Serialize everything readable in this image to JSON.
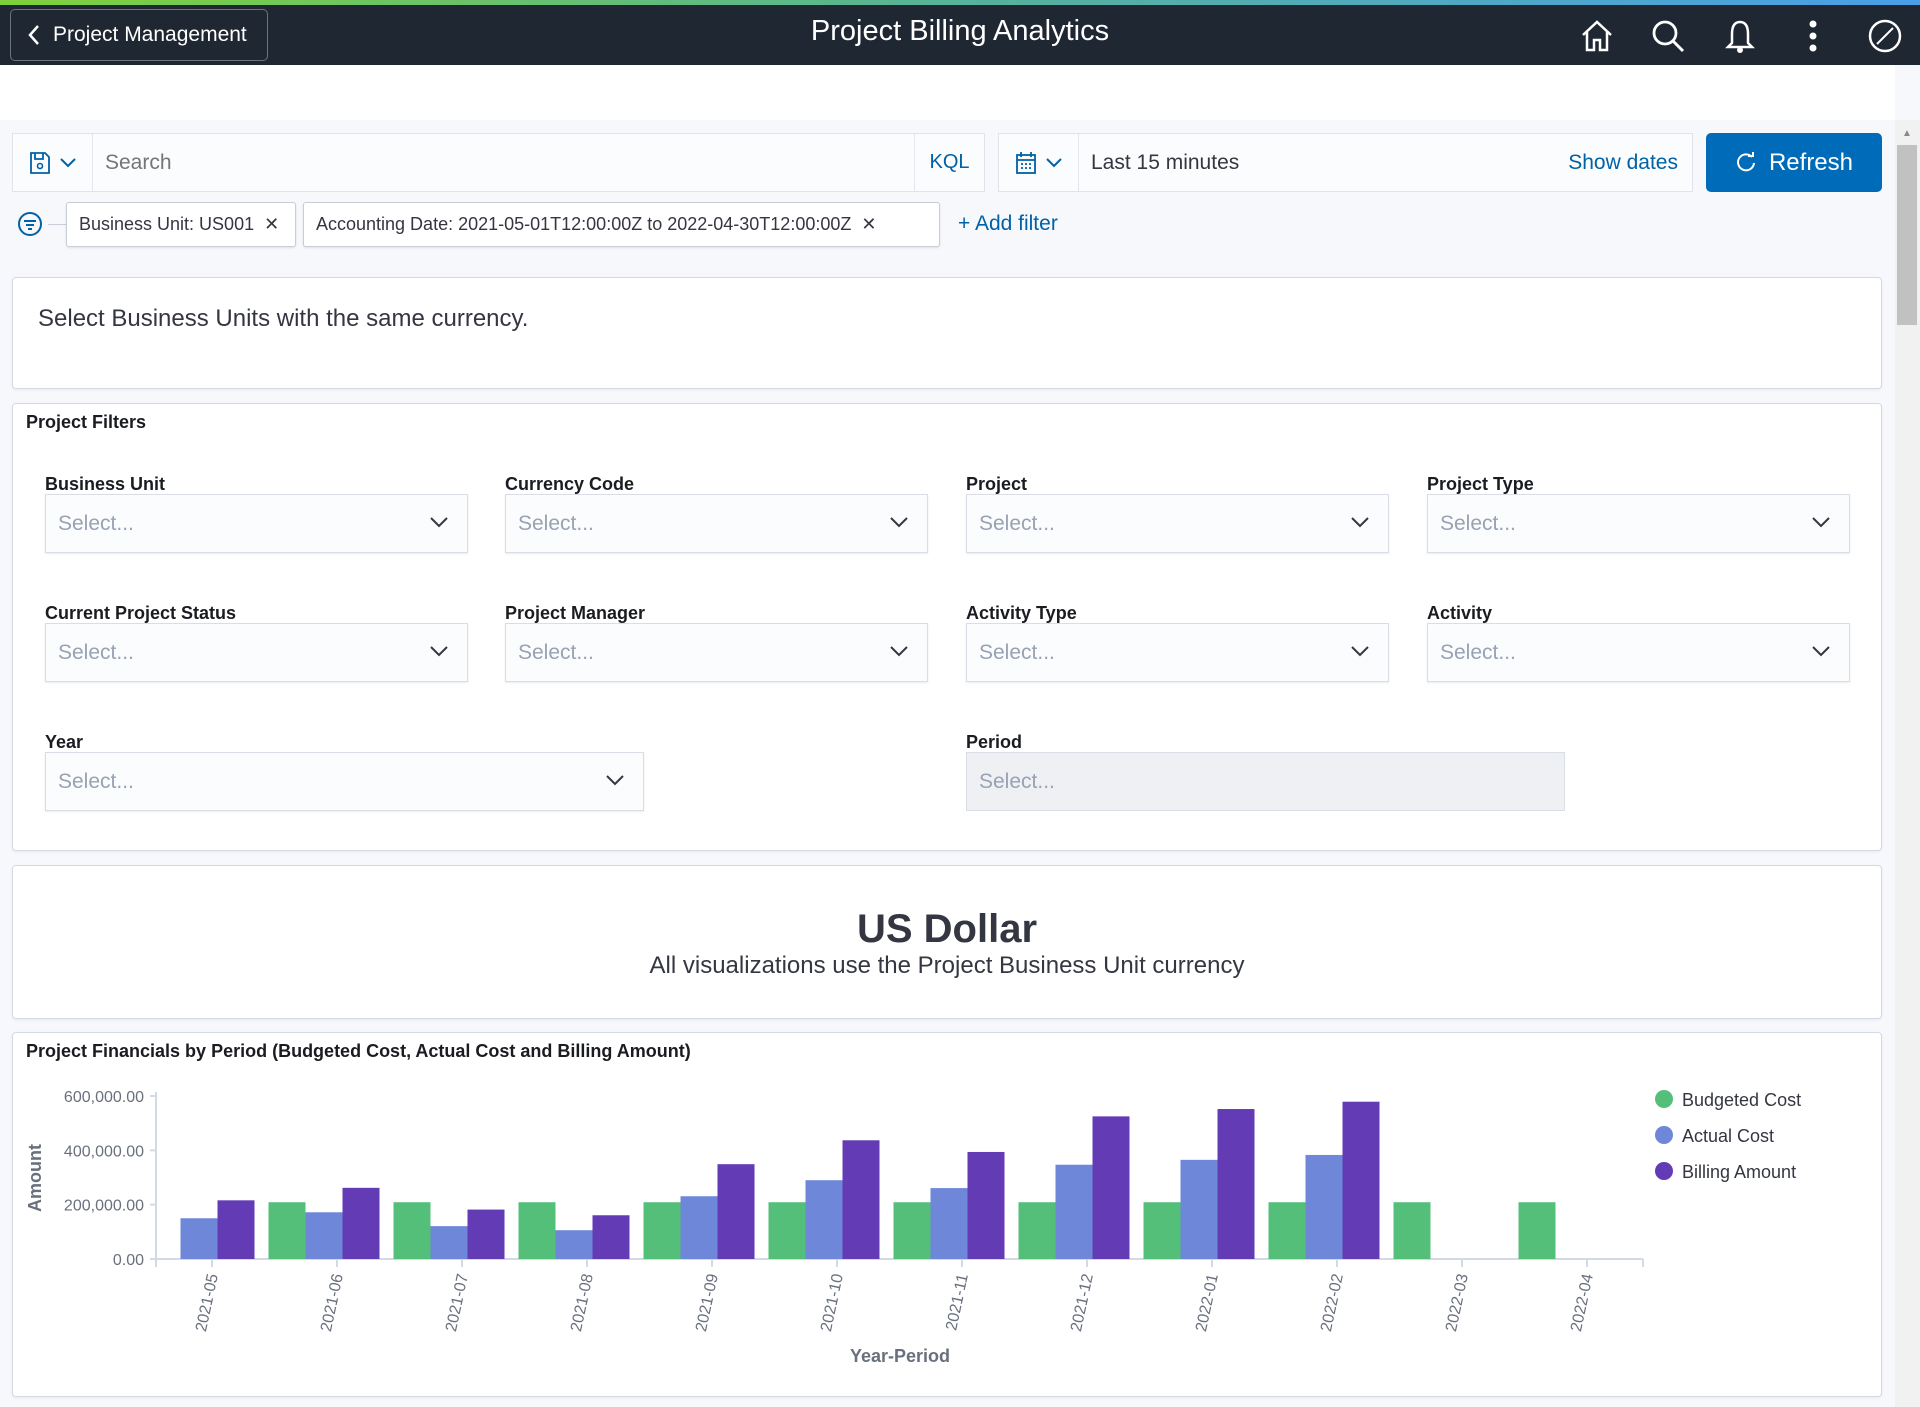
{
  "header": {
    "back_label": "Project Management",
    "title": "Project Billing Analytics",
    "icons": [
      "home-icon",
      "search-icon",
      "bell-icon",
      "more-vertical-icon",
      "compass-icon"
    ]
  },
  "query": {
    "search_placeholder": "Search",
    "kql_label": "KQL",
    "time_range": "Last 15 minutes",
    "show_dates_label": "Show dates",
    "refresh_label": "Refresh"
  },
  "filters": {
    "pills": [
      "Business Unit: US001",
      "Accounting Date: 2021-05-01T12:00:00Z to 2022-04-30T12:00:00Z"
    ],
    "add_filter_label": "+ Add filter"
  },
  "notice": "Select Business Units with the same currency.",
  "project_filters": {
    "title": "Project Filters",
    "fields": [
      {
        "label": "Business Unit",
        "placeholder": "Select..."
      },
      {
        "label": "Currency Code",
        "placeholder": "Select..."
      },
      {
        "label": "Project",
        "placeholder": "Select..."
      },
      {
        "label": "Project Type",
        "placeholder": "Select..."
      },
      {
        "label": "Current Project Status",
        "placeholder": "Select..."
      },
      {
        "label": "Project Manager",
        "placeholder": "Select..."
      },
      {
        "label": "Activity Type",
        "placeholder": "Select..."
      },
      {
        "label": "Activity",
        "placeholder": "Select..."
      },
      {
        "label": "Year",
        "placeholder": "Select..."
      },
      {
        "label": "Period",
        "placeholder": "Select...",
        "disabled": true
      }
    ]
  },
  "currency": {
    "title": "US Dollar",
    "subtitle": "All visualizations use the Project Business Unit currency"
  },
  "chart_data": {
    "type": "bar",
    "title": "Project Financials by Period (Budgeted Cost, Actual Cost and Billing Amount)",
    "xlabel": "Year-Period",
    "ylabel": "Amount",
    "ylim": [
      0,
      600000
    ],
    "yticks": [
      "0.00",
      "200,000.00",
      "400,000.00",
      "600,000.00"
    ],
    "categories": [
      "2021-05",
      "2021-06",
      "2021-07",
      "2021-08",
      "2021-09",
      "2021-10",
      "2021-11",
      "2021-12",
      "2022-01",
      "2022-02",
      "2022-03",
      "2022-04"
    ],
    "legend_position": "right",
    "series": [
      {
        "name": "Budgeted Cost",
        "color": "#54bf79",
        "values": [
          0,
          209000,
          209000,
          209000,
          209000,
          209000,
          209000,
          209000,
          209000,
          209000,
          209000,
          209000
        ]
      },
      {
        "name": "Actual Cost",
        "color": "#6e87d8",
        "values": [
          150000,
          172000,
          121000,
          106000,
          231000,
          290000,
          261000,
          347000,
          365000,
          383000,
          0,
          0
        ]
      },
      {
        "name": "Billing Amount",
        "color": "#633bb5",
        "values": [
          216000,
          262000,
          182000,
          161000,
          349000,
          437000,
          394000,
          525000,
          552000,
          579000,
          0,
          0
        ]
      }
    ]
  }
}
